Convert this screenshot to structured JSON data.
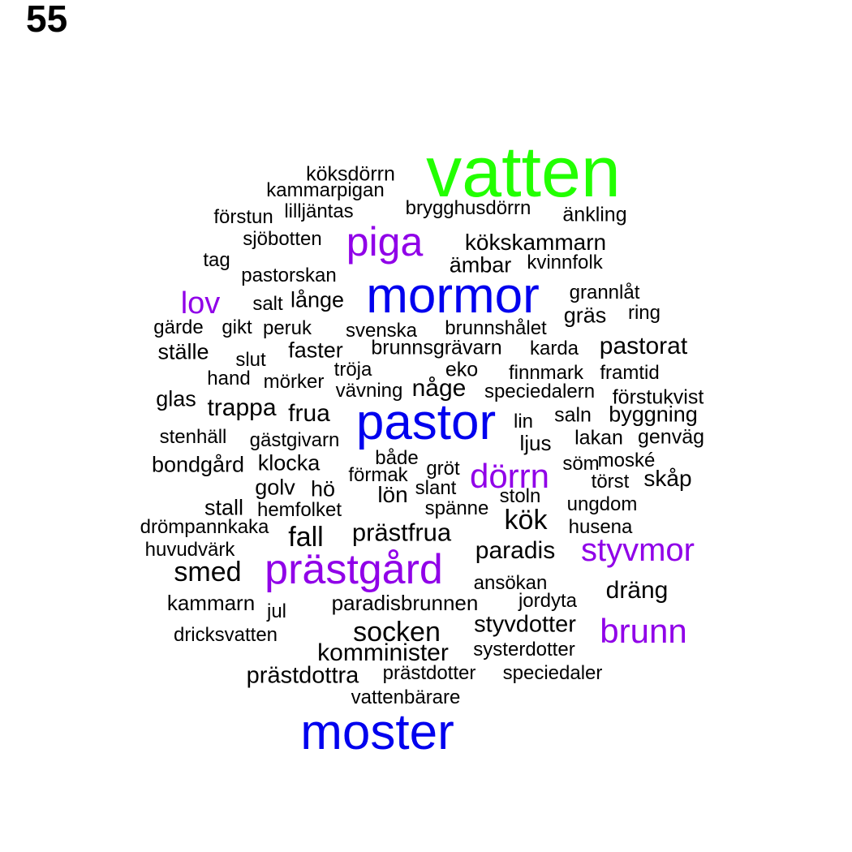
{
  "page_number": "55",
  "colors": {
    "rank1": "#22ff00",
    "rank2": "#0000ee",
    "rank3": "#9000e8",
    "rank4": "#000000"
  },
  "words": [
    {
      "text": "vatten",
      "rank": 1
    },
    {
      "text": "mormor",
      "rank": 2
    },
    {
      "text": "pastor",
      "rank": 2
    },
    {
      "text": "moster",
      "rank": 2
    },
    {
      "text": "piga",
      "rank": 3
    },
    {
      "text": "prästgård",
      "rank": 3
    },
    {
      "text": "dörrn",
      "rank": 3
    },
    {
      "text": "styvmor",
      "rank": 3
    },
    {
      "text": "brunn",
      "rank": 3
    },
    {
      "text": "lov",
      "rank": 3
    },
    {
      "text": "köksdörrn",
      "rank": 4
    },
    {
      "text": "kammarpigan",
      "rank": 4
    },
    {
      "text": "brygghusdörrn",
      "rank": 4
    },
    {
      "text": "förstun",
      "rank": 4
    },
    {
      "text": "lilljäntas",
      "rank": 4
    },
    {
      "text": "änkling",
      "rank": 4
    },
    {
      "text": "sjöbotten",
      "rank": 4
    },
    {
      "text": "kökskammarn",
      "rank": 4
    },
    {
      "text": "tag",
      "rank": 4
    },
    {
      "text": "ämbar",
      "rank": 4
    },
    {
      "text": "kvinnfolk",
      "rank": 4
    },
    {
      "text": "pastorskan",
      "rank": 4
    },
    {
      "text": "grannlåt",
      "rank": 4
    },
    {
      "text": "salt",
      "rank": 4
    },
    {
      "text": "långe",
      "rank": 4
    },
    {
      "text": "gräs",
      "rank": 4
    },
    {
      "text": "ring",
      "rank": 4
    },
    {
      "text": "gärde",
      "rank": 4
    },
    {
      "text": "gikt",
      "rank": 4
    },
    {
      "text": "peruk",
      "rank": 4
    },
    {
      "text": "svenska",
      "rank": 4
    },
    {
      "text": "brunnshålet",
      "rank": 4
    },
    {
      "text": "ställe",
      "rank": 4
    },
    {
      "text": "slut",
      "rank": 4
    },
    {
      "text": "faster",
      "rank": 4
    },
    {
      "text": "brunnsgrävarn",
      "rank": 4
    },
    {
      "text": "karda",
      "rank": 4
    },
    {
      "text": "pastorat",
      "rank": 4
    },
    {
      "text": "hand",
      "rank": 4
    },
    {
      "text": "mörker",
      "rank": 4
    },
    {
      "text": "tröja",
      "rank": 4
    },
    {
      "text": "eko",
      "rank": 4
    },
    {
      "text": "finnmark",
      "rank": 4
    },
    {
      "text": "framtid",
      "rank": 4
    },
    {
      "text": "glas",
      "rank": 4
    },
    {
      "text": "vävning",
      "rank": 4
    },
    {
      "text": "någe",
      "rank": 4
    },
    {
      "text": "speciedalern",
      "rank": 4
    },
    {
      "text": "förstukvist",
      "rank": 4
    },
    {
      "text": "trappa",
      "rank": 4
    },
    {
      "text": "frua",
      "rank": 4
    },
    {
      "text": "lin",
      "rank": 4
    },
    {
      "text": "saln",
      "rank": 4
    },
    {
      "text": "byggning",
      "rank": 4
    },
    {
      "text": "stenhäll",
      "rank": 4
    },
    {
      "text": "gästgivarn",
      "rank": 4
    },
    {
      "text": "ljus",
      "rank": 4
    },
    {
      "text": "lakan",
      "rank": 4
    },
    {
      "text": "genväg",
      "rank": 4
    },
    {
      "text": "bondgård",
      "rank": 4
    },
    {
      "text": "klocka",
      "rank": 4
    },
    {
      "text": "både",
      "rank": 4
    },
    {
      "text": "förmak",
      "rank": 4
    },
    {
      "text": "gröt",
      "rank": 4
    },
    {
      "text": "söm",
      "rank": 4
    },
    {
      "text": "moské",
      "rank": 4
    },
    {
      "text": "golv",
      "rank": 4
    },
    {
      "text": "hö",
      "rank": 4
    },
    {
      "text": "lön",
      "rank": 4
    },
    {
      "text": "slant",
      "rank": 4
    },
    {
      "text": "törst",
      "rank": 4
    },
    {
      "text": "skåp",
      "rank": 4
    },
    {
      "text": "stall",
      "rank": 4
    },
    {
      "text": "hemfolket",
      "rank": 4
    },
    {
      "text": "spänne",
      "rank": 4
    },
    {
      "text": "stoln",
      "rank": 4
    },
    {
      "text": "kök",
      "rank": 4
    },
    {
      "text": "ungdom",
      "rank": 4
    },
    {
      "text": "drömpannkaka",
      "rank": 4
    },
    {
      "text": "fall",
      "rank": 4
    },
    {
      "text": "prästfrua",
      "rank": 4
    },
    {
      "text": "husena",
      "rank": 4
    },
    {
      "text": "huvudvärk",
      "rank": 4
    },
    {
      "text": "paradis",
      "rank": 4
    },
    {
      "text": "smed",
      "rank": 4
    },
    {
      "text": "ansökan",
      "rank": 4
    },
    {
      "text": "dräng",
      "rank": 4
    },
    {
      "text": "kammarn",
      "rank": 4
    },
    {
      "text": "jul",
      "rank": 4
    },
    {
      "text": "paradisbrunnen",
      "rank": 4
    },
    {
      "text": "jordyta",
      "rank": 4
    },
    {
      "text": "dricksvatten",
      "rank": 4
    },
    {
      "text": "socken",
      "rank": 4
    },
    {
      "text": "styvdotter",
      "rank": 4
    },
    {
      "text": "komminister",
      "rank": 4
    },
    {
      "text": "systerdotter",
      "rank": 4
    },
    {
      "text": "prästdottra",
      "rank": 4
    },
    {
      "text": "prästdotter",
      "rank": 4
    },
    {
      "text": "speciedaler",
      "rank": 4
    },
    {
      "text": "vattenbärare",
      "rank": 4
    }
  ]
}
